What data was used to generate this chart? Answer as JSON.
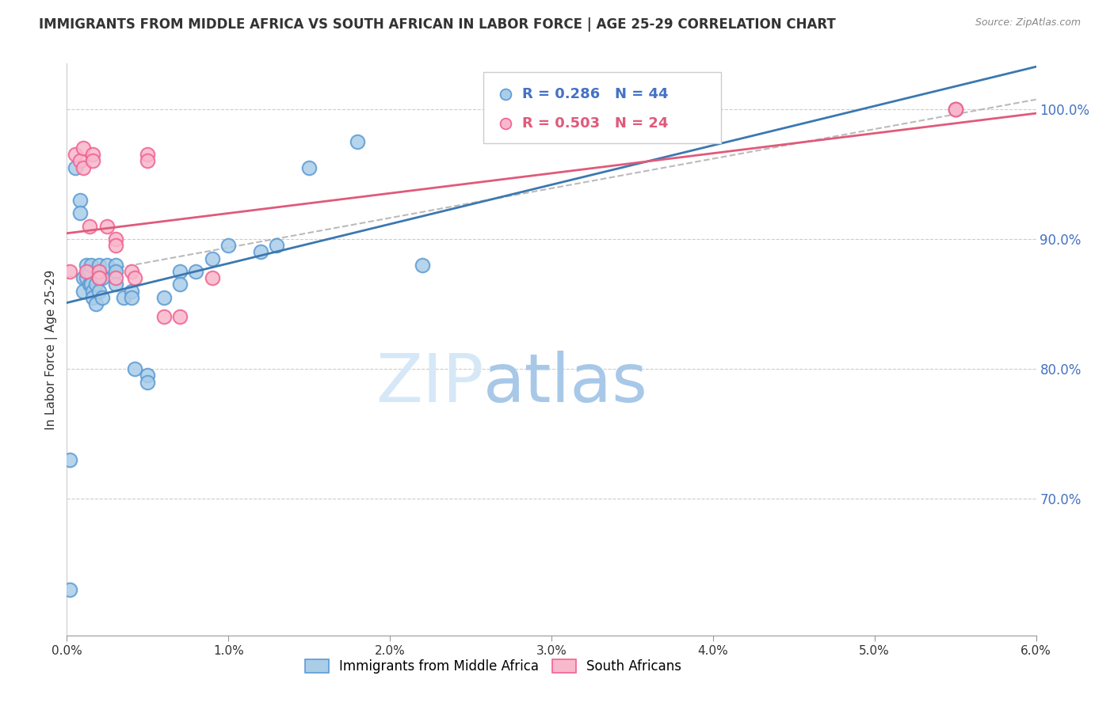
{
  "title": "IMMIGRANTS FROM MIDDLE AFRICA VS SOUTH AFRICAN IN LABOR FORCE | AGE 25-29 CORRELATION CHART",
  "source": "Source: ZipAtlas.com",
  "ylabel": "In Labor Force | Age 25-29",
  "xlim": [
    0.0,
    0.06
  ],
  "ylim": [
    0.595,
    1.035
  ],
  "xticks": [
    0.0,
    0.01,
    0.02,
    0.03,
    0.04,
    0.05,
    0.06
  ],
  "xticklabels": [
    "0.0%",
    "1.0%",
    "2.0%",
    "3.0%",
    "4.0%",
    "5.0%",
    "6.0%"
  ],
  "yticks_right": [
    0.7,
    0.8,
    0.9,
    1.0
  ],
  "ytick_right_labels": [
    "70.0%",
    "80.0%",
    "90.0%",
    "100.0%"
  ],
  "blue_label": "Immigrants from Middle Africa",
  "pink_label": "South Africans",
  "blue_R": "R = 0.286",
  "blue_N": "N = 44",
  "pink_R": "R = 0.503",
  "pink_N": "N = 24",
  "blue_color": "#aacde8",
  "pink_color": "#f9b8cc",
  "blue_edge": "#5b9bd5",
  "pink_edge": "#f06292",
  "trend_blue": "#3b78b0",
  "trend_pink": "#e05a7a",
  "watermark_zip": "#d6e8f7",
  "watermark_atlas": "#a8c8e8",
  "blue_x": [
    0.0002,
    0.0002,
    0.0005,
    0.0008,
    0.0008,
    0.001,
    0.001,
    0.0012,
    0.0012,
    0.0014,
    0.0014,
    0.0015,
    0.0015,
    0.0016,
    0.0016,
    0.0018,
    0.0018,
    0.002,
    0.002,
    0.002,
    0.0022,
    0.0022,
    0.0025,
    0.003,
    0.003,
    0.003,
    0.0035,
    0.004,
    0.004,
    0.0042,
    0.005,
    0.005,
    0.006,
    0.007,
    0.007,
    0.008,
    0.009,
    0.01,
    0.012,
    0.013,
    0.015,
    0.018,
    0.022,
    0.055
  ],
  "blue_y": [
    0.73,
    0.63,
    0.955,
    0.93,
    0.92,
    0.87,
    0.86,
    0.88,
    0.87,
    0.875,
    0.865,
    0.88,
    0.865,
    0.86,
    0.855,
    0.865,
    0.85,
    0.88,
    0.87,
    0.86,
    0.87,
    0.855,
    0.88,
    0.88,
    0.875,
    0.865,
    0.855,
    0.86,
    0.855,
    0.8,
    0.795,
    0.79,
    0.855,
    0.875,
    0.865,
    0.875,
    0.885,
    0.895,
    0.89,
    0.895,
    0.955,
    0.975,
    0.88,
    1.0
  ],
  "pink_x": [
    0.0002,
    0.0005,
    0.0008,
    0.001,
    0.001,
    0.0012,
    0.0014,
    0.0016,
    0.0016,
    0.002,
    0.002,
    0.0025,
    0.003,
    0.003,
    0.003,
    0.004,
    0.0042,
    0.005,
    0.005,
    0.006,
    0.007,
    0.009,
    0.055,
    0.055
  ],
  "pink_y": [
    0.875,
    0.965,
    0.96,
    0.97,
    0.955,
    0.875,
    0.91,
    0.965,
    0.96,
    0.875,
    0.87,
    0.91,
    0.9,
    0.895,
    0.87,
    0.875,
    0.87,
    0.965,
    0.96,
    0.84,
    0.84,
    0.87,
    1.0,
    1.0
  ]
}
